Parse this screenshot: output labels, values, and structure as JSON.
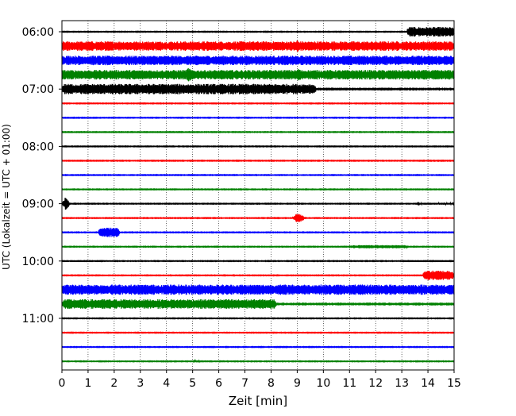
{
  "chart_data": {
    "type": "line",
    "title": "",
    "xlabel": "Zeit  [min]",
    "ylabel": "UTC (Lokalzeit = UTC + 01:00)",
    "xlim": [
      0,
      15
    ],
    "x_ticks": [
      "0",
      "1",
      "2",
      "3",
      "4",
      "5",
      "6",
      "7",
      "8",
      "9",
      "10",
      "11",
      "12",
      "13",
      "14",
      "15"
    ],
    "y_tick_labels": [
      "06:00",
      "07:00",
      "08:00",
      "09:00",
      "10:00",
      "11:00"
    ],
    "grid": "vertical dotted at each minute",
    "line_colors": [
      "#000000",
      "#ff0000",
      "#0000ff",
      "#008000"
    ],
    "trace_interval_min": 15,
    "traces": [
      {
        "start": "06:00",
        "color": "#000000",
        "base": 0.4,
        "events": [
          {
            "from": 13.2,
            "to": 15,
            "amp": 6
          }
        ]
      },
      {
        "start": "06:15",
        "color": "#ff0000",
        "base": 6,
        "events": [
          {
            "from": 8.9,
            "to": 9.1,
            "amp": 8
          },
          {
            "from": 9.5,
            "to": 9.7,
            "amp": 7.5
          }
        ]
      },
      {
        "start": "06:30",
        "color": "#0000ff",
        "base": 6,
        "events": []
      },
      {
        "start": "06:45",
        "color": "#008000",
        "base": 6,
        "events": [
          {
            "from": 4.7,
            "to": 5.0,
            "amp": 9
          },
          {
            "from": 8.9,
            "to": 9.2,
            "amp": 8
          }
        ]
      },
      {
        "start": "07:00",
        "color": "#000000",
        "base": 0.6,
        "events": [
          {
            "from": 0,
            "to": 9.7,
            "amp": 6.5
          },
          {
            "from": 14.3,
            "to": 14.6,
            "amp": 2
          }
        ]
      },
      {
        "start": "07:15",
        "color": "#ff0000",
        "base": 0.4,
        "events": []
      },
      {
        "start": "07:30",
        "color": "#0000ff",
        "base": 0.4,
        "events": []
      },
      {
        "start": "07:45",
        "color": "#008000",
        "base": 0.4,
        "events": []
      },
      {
        "start": "08:00",
        "color": "#000000",
        "base": 0.4,
        "events": []
      },
      {
        "start": "08:15",
        "color": "#ff0000",
        "base": 0.4,
        "events": []
      },
      {
        "start": "08:30",
        "color": "#0000ff",
        "base": 0.4,
        "events": []
      },
      {
        "start": "08:45",
        "color": "#008000",
        "base": 0.4,
        "events": []
      },
      {
        "start": "09:00",
        "color": "#000000",
        "base": 0.4,
        "events": [
          {
            "from": 0,
            "to": 0.3,
            "amp": 8
          },
          {
            "from": 13.6,
            "to": 15,
            "amp": 1.2
          }
        ]
      },
      {
        "start": "09:15",
        "color": "#ff0000",
        "base": 0.4,
        "events": [
          {
            "from": 8.8,
            "to": 9.3,
            "amp": 6
          }
        ]
      },
      {
        "start": "09:30",
        "color": "#0000ff",
        "base": 0.4,
        "events": [
          {
            "from": 1.4,
            "to": 2.2,
            "amp": 6
          }
        ]
      },
      {
        "start": "09:45",
        "color": "#008000",
        "base": 0.4,
        "events": [
          {
            "from": 11.0,
            "to": 13.2,
            "amp": 2
          }
        ]
      },
      {
        "start": "10:00",
        "color": "#000000",
        "base": 0.4,
        "events": []
      },
      {
        "start": "10:15",
        "color": "#ff0000",
        "base": 0.4,
        "events": [
          {
            "from": 13.8,
            "to": 15,
            "amp": 6
          }
        ]
      },
      {
        "start": "10:30",
        "color": "#0000ff",
        "base": 6.5,
        "events": []
      },
      {
        "start": "10:45",
        "color": "#008000",
        "base": 0.6,
        "events": [
          {
            "from": 0,
            "to": 8.2,
            "amp": 6
          }
        ]
      },
      {
        "start": "11:00",
        "color": "#000000",
        "base": 0.4,
        "events": []
      },
      {
        "start": "11:15",
        "color": "#ff0000",
        "base": 0.4,
        "events": []
      },
      {
        "start": "11:30",
        "color": "#0000ff",
        "base": 0.4,
        "events": []
      },
      {
        "start": "11:45",
        "color": "#008000",
        "base": 0.4,
        "events": [
          {
            "from": 5.0,
            "to": 5.3,
            "amp": 1.5
          }
        ]
      }
    ]
  }
}
